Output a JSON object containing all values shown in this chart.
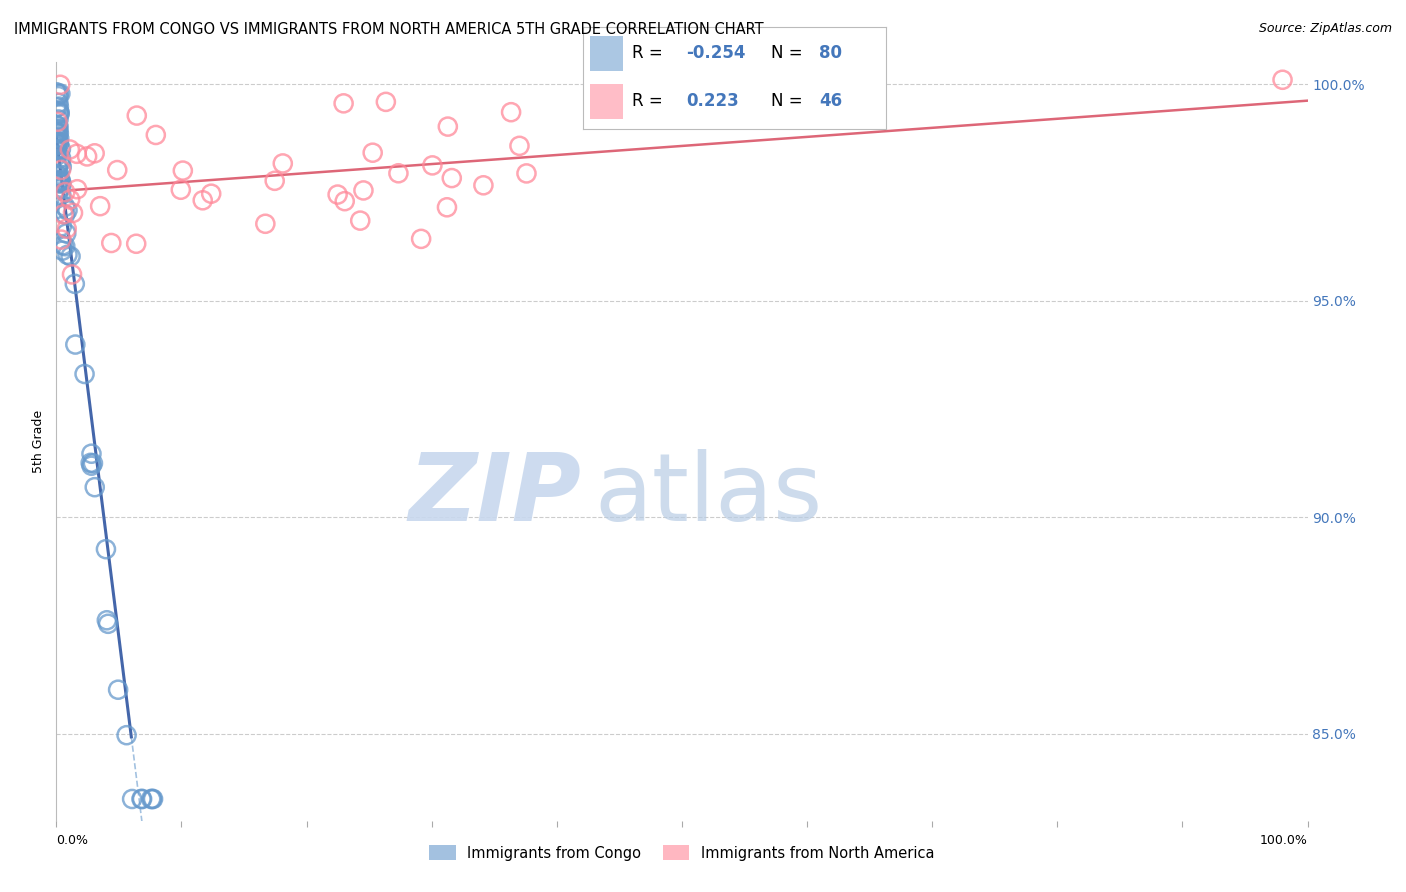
{
  "title": "IMMIGRANTS FROM CONGO VS IMMIGRANTS FROM NORTH AMERICA 5TH GRADE CORRELATION CHART",
  "source": "Source: ZipAtlas.com",
  "ylabel": "5th Grade",
  "congo_color": "#6699CC",
  "na_color": "#FF8899",
  "congo_color_dark": "#4466AA",
  "na_color_dark": "#DD6677",
  "congo_R": -0.254,
  "congo_N": 80,
  "na_R": 0.223,
  "na_N": 46,
  "background_color": "#ffffff",
  "grid_color": "#cccccc",
  "ytick_color": "#4477BB",
  "watermark_zip_color": "#C8D8EE",
  "watermark_atlas_color": "#B8CCE4",
  "legend_box_color": "#f5f5f5"
}
